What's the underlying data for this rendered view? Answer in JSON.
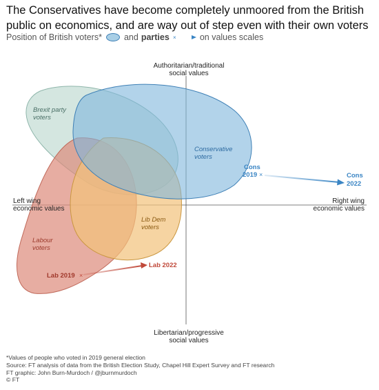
{
  "header": {
    "title": "The Conservatives have become completely unmoored from the British public on economics, and are way out of step even with their own voters",
    "subtitle_part1": "Position of British voters*",
    "subtitle_and": "and",
    "subtitle_parties": "parties",
    "subtitle_part3": "on values scales"
  },
  "axes": {
    "top_line1": "Authoritarian/traditional",
    "top_line2": "social values",
    "bottom_line1": "Libertarian/progressive",
    "bottom_line2": "social values",
    "left_line1": "Left wing",
    "left_line2": "economic values",
    "right_line1": "Right wing",
    "right_line2": "economic values"
  },
  "voter_groups": [
    {
      "name_line1": "Brexit party",
      "name_line2": "voters",
      "color": "#c5ddd5"
    },
    {
      "name_line1": "Conservative",
      "name_line2": "voters",
      "color": "#7fb6dc"
    },
    {
      "name_line1": "Lib Dem",
      "name_line2": "voters",
      "color": "#f2c27a"
    },
    {
      "name_line1": "Labour",
      "name_line2": "voters",
      "color": "#dd8a7a"
    }
  ],
  "parties": {
    "cons_2019_line1": "Cons",
    "cons_2019_line2": "2019",
    "cons_2022_line1": "Cons",
    "cons_2022_line2": "2022",
    "lab_2019": "Lab 2019",
    "lab_2022": "Lab 2022",
    "cons_color": "#3a85c4",
    "lab_color": "#c0493a"
  },
  "footer": {
    "note": "*Values of people who voted in 2019 general election",
    "source": "Source: FT analysis of data from the British Election Study, Chapel Hill Expert Survey and FT research",
    "credit": "FT graphic: John Burn-Murdoch / @jburnmurdoch",
    "copyright": "© FT"
  }
}
